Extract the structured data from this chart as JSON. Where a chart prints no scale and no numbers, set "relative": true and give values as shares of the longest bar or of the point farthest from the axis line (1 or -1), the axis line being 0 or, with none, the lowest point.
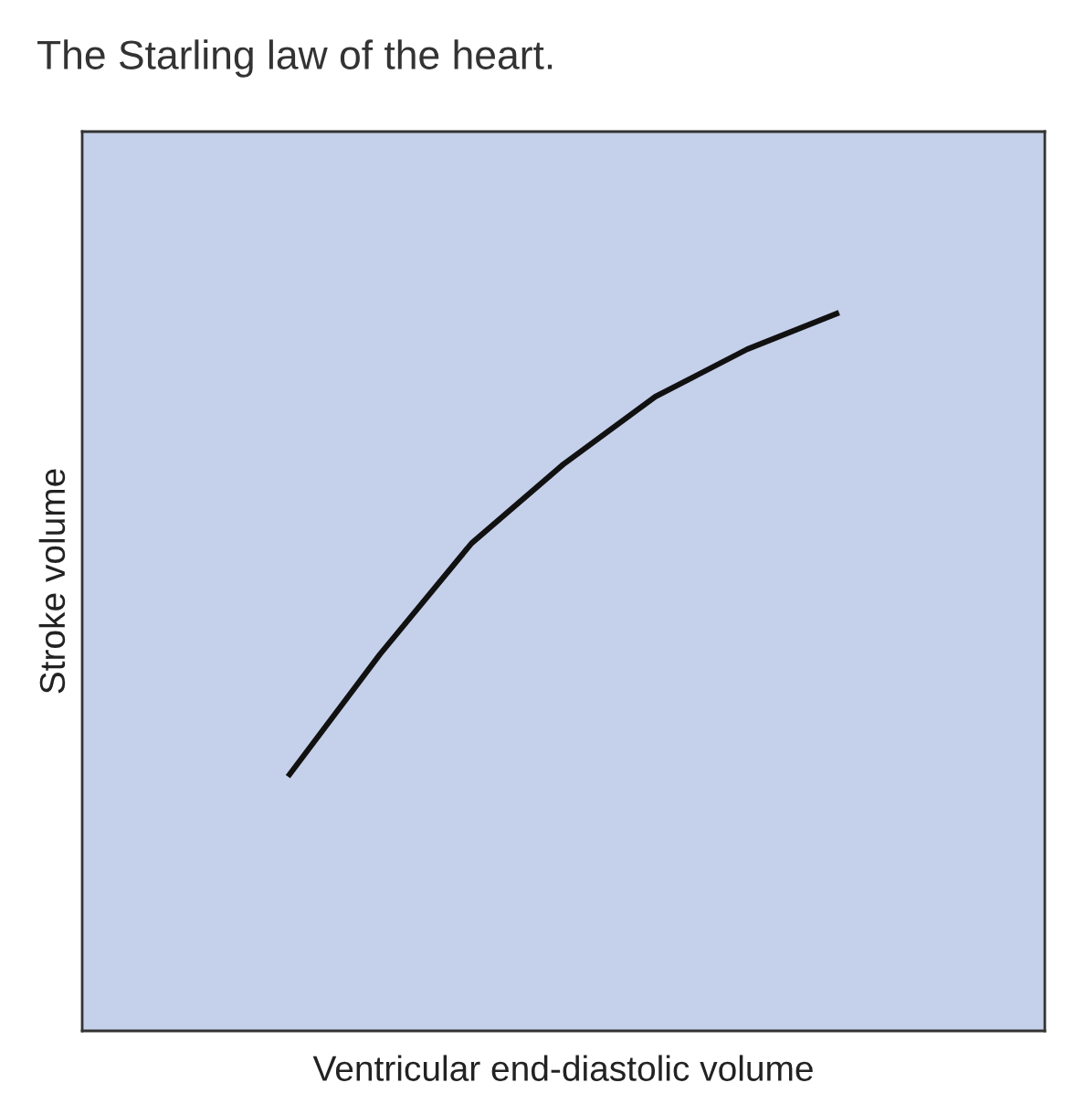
{
  "chart_data": {
    "type": "line",
    "title": "The Starling law of the heart.",
    "xlabel": "Ventricular end-diastolic volume",
    "ylabel": "Stroke volume",
    "relative": true,
    "categories": [
      null,
      null,
      null,
      null,
      null,
      null,
      null
    ],
    "series": [
      {
        "color": "#111111",
        "values": [
          0.354,
          0.524,
          0.679,
          0.789,
          0.883,
          0.949,
          1.0
        ]
      }
    ],
    "marker": "none",
    "line_style": "solid",
    "grid": false,
    "legend": false
  }
}
